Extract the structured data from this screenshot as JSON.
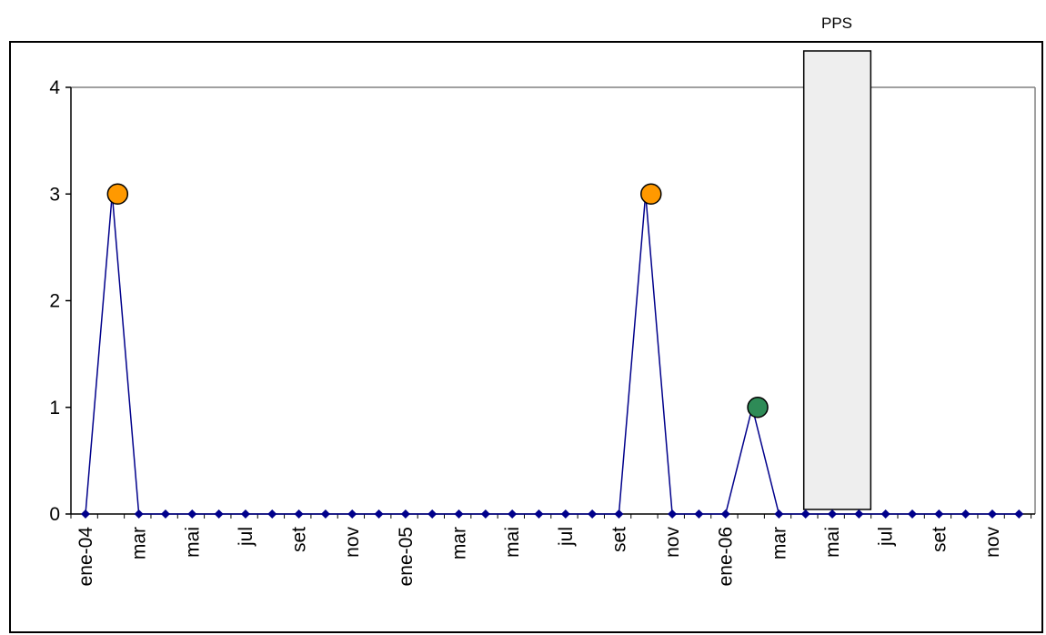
{
  "chart_data": {
    "type": "line",
    "title": "",
    "xlabel": "",
    "ylabel": "",
    "ylim": [
      0,
      4
    ],
    "yticks": [
      0,
      1,
      2,
      3,
      4
    ],
    "x": [
      "ene-04",
      "feb-04",
      "mar-04",
      "abr-04",
      "mai-04",
      "jun-04",
      "jul-04",
      "ago-04",
      "set-04",
      "oct-04",
      "nov-04",
      "dic-04",
      "ene-05",
      "feb-05",
      "mar-05",
      "abr-05",
      "mai-05",
      "jun-05",
      "jul-05",
      "ago-05",
      "set-05",
      "oct-05",
      "nov-05",
      "dic-05",
      "ene-06",
      "feb-06",
      "mar-06",
      "abr-06",
      "mai-06",
      "jun-06",
      "jul-06",
      "ago-06",
      "set-06",
      "oct-06",
      "nov-06",
      "dic-06"
    ],
    "tick_labels": [
      "ene-04",
      "",
      "mar",
      "",
      "mai",
      "",
      "jul",
      "",
      "set",
      "",
      "nov",
      "",
      "ene-05",
      "",
      "mar",
      "",
      "mai",
      "",
      "jul",
      "",
      "set",
      "",
      "nov",
      "",
      "ene-06",
      "",
      "mar",
      "",
      "mai",
      "",
      "jul",
      "",
      "set",
      "",
      "nov",
      ""
    ],
    "series": [
      {
        "values": [
          0,
          3,
          0,
          0,
          0,
          0,
          0,
          0,
          0,
          0,
          0,
          0,
          0,
          0,
          0,
          0,
          0,
          0,
          0,
          0,
          0,
          3,
          0,
          0,
          0,
          1,
          0,
          0,
          0,
          0,
          0,
          0,
          0,
          0,
          0,
          0
        ],
        "color": "#00008b",
        "marker": "diamond"
      }
    ],
    "highlights": [
      {
        "index": 1,
        "value": 3,
        "color": "#ff9900"
      },
      {
        "index": 21,
        "value": 3,
        "color": "#ff9900"
      },
      {
        "index": 25,
        "value": 1,
        "color": "#2e8b57"
      }
    ],
    "annotation": {
      "label": "PPS",
      "from_index": 27,
      "to_index": 29,
      "fill": "#eeeeee"
    },
    "grid": false,
    "legend": "none"
  }
}
